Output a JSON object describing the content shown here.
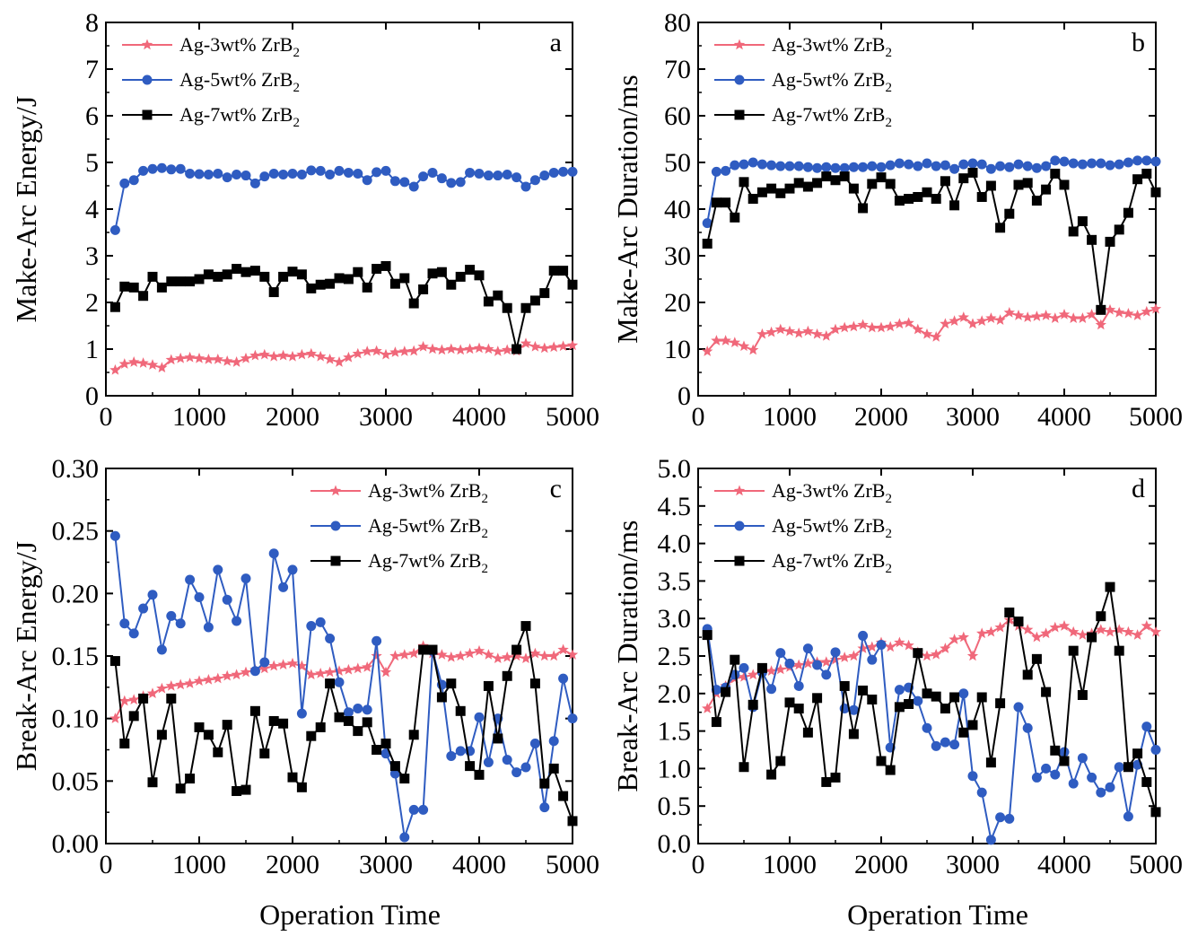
{
  "figure": {
    "x_axis_shared_label": "Operation Time"
  },
  "series_styles": [
    {
      "name": "Ag-3wt% ZrB2",
      "name_base": "Ag-3wt% ZrB",
      "name_sub": "2",
      "color": "#f0687a",
      "marker": "star"
    },
    {
      "name": "Ag-5wt% ZrB2",
      "name_base": "Ag-5wt% ZrB",
      "name_sub": "2",
      "color": "#2f5cc1",
      "marker": "circle"
    },
    {
      "name": "Ag-7wt% ZrB2",
      "name_base": "Ag-7wt% ZrB",
      "name_sub": "2",
      "color": "#000000",
      "marker": "square"
    }
  ],
  "chart_data": [
    {
      "panel": "a",
      "type": "line",
      "ylabel": "Make-Arc Energy/J",
      "xlabel": "",
      "xlim": [
        0,
        5000
      ],
      "ylim": [
        0,
        8
      ],
      "xticks": [
        "0",
        "1000",
        "2000",
        "3000",
        "4000",
        "5000"
      ],
      "yticks": [
        "0",
        "1",
        "2",
        "3",
        "4",
        "5",
        "6",
        "7",
        "8"
      ],
      "legend": "top-left",
      "x": [
        100,
        200,
        300,
        400,
        500,
        600,
        700,
        800,
        900,
        1000,
        1100,
        1200,
        1300,
        1400,
        1500,
        1600,
        1700,
        1800,
        1900,
        2000,
        2100,
        2200,
        2300,
        2400,
        2500,
        2600,
        2700,
        2800,
        2900,
        3000,
        3100,
        3200,
        3300,
        3400,
        3500,
        3600,
        3700,
        3800,
        3900,
        4000,
        4100,
        4200,
        4300,
        4400,
        4500,
        4600,
        4700,
        4800,
        4900,
        5000
      ],
      "series": [
        {
          "name": "Ag-3wt% ZrB2",
          "values": [
            0.55,
            0.68,
            0.72,
            0.7,
            0.66,
            0.6,
            0.77,
            0.8,
            0.82,
            0.8,
            0.78,
            0.78,
            0.74,
            0.72,
            0.8,
            0.86,
            0.88,
            0.84,
            0.86,
            0.84,
            0.88,
            0.9,
            0.84,
            0.78,
            0.72,
            0.82,
            0.9,
            0.95,
            0.96,
            0.88,
            0.93,
            0.95,
            0.96,
            1.05,
            1.0,
            0.98,
            1.0,
            0.98,
            1.0,
            1.02,
            1.0,
            0.95,
            0.98,
            0.96,
            1.12,
            1.05,
            1.02,
            1.04,
            1.06,
            1.08
          ]
        },
        {
          "name": "Ag-5wt% ZrB2",
          "values": [
            3.55,
            4.55,
            4.62,
            4.82,
            4.86,
            4.88,
            4.85,
            4.86,
            4.76,
            4.75,
            4.74,
            4.76,
            4.68,
            4.74,
            4.72,
            4.55,
            4.7,
            4.76,
            4.74,
            4.76,
            4.74,
            4.83,
            4.82,
            4.74,
            4.82,
            4.78,
            4.76,
            4.62,
            4.79,
            4.82,
            4.6,
            4.58,
            4.48,
            4.7,
            4.78,
            4.66,
            4.56,
            4.58,
            4.78,
            4.76,
            4.72,
            4.72,
            4.74,
            4.68,
            4.48,
            4.62,
            4.72,
            4.78,
            4.8,
            4.8
          ]
        },
        {
          "name": "Ag-7wt% ZrB2",
          "values": [
            1.9,
            2.34,
            2.32,
            2.14,
            2.55,
            2.32,
            2.45,
            2.45,
            2.45,
            2.5,
            2.6,
            2.55,
            2.6,
            2.72,
            2.65,
            2.68,
            2.55,
            2.22,
            2.55,
            2.66,
            2.6,
            2.3,
            2.38,
            2.4,
            2.52,
            2.5,
            2.65,
            2.32,
            2.72,
            2.78,
            2.4,
            2.52,
            1.98,
            2.28,
            2.62,
            2.65,
            2.38,
            2.55,
            2.7,
            2.58,
            2.02,
            2.15,
            1.88,
            1.0,
            1.88,
            2.04,
            2.2,
            2.68,
            2.68,
            2.38
          ]
        }
      ]
    },
    {
      "panel": "b",
      "type": "line",
      "ylabel": "Make-Arc Duration/ms",
      "xlabel": "",
      "xlim": [
        0,
        5000
      ],
      "ylim": [
        0,
        80
      ],
      "xticks": [
        "0",
        "1000",
        "2000",
        "3000",
        "4000",
        "5000"
      ],
      "yticks": [
        "0",
        "10",
        "20",
        "30",
        "40",
        "50",
        "60",
        "70",
        "80"
      ],
      "legend": "top-left",
      "x": [
        100,
        200,
        300,
        400,
        500,
        600,
        700,
        800,
        900,
        1000,
        1100,
        1200,
        1300,
        1400,
        1500,
        1600,
        1700,
        1800,
        1900,
        2000,
        2100,
        2200,
        2300,
        2400,
        2500,
        2600,
        2700,
        2800,
        2900,
        3000,
        3100,
        3200,
        3300,
        3400,
        3500,
        3600,
        3700,
        3800,
        3900,
        4000,
        4100,
        4200,
        4300,
        4400,
        4500,
        4600,
        4700,
        4800,
        4900,
        5000
      ],
      "series": [
        {
          "name": "Ag-3wt% ZrB2",
          "values": [
            9.5,
            11.8,
            11.8,
            11.4,
            10.6,
            9.8,
            13.2,
            13.6,
            14.2,
            13.8,
            13.4,
            13.8,
            13.2,
            12.8,
            14.2,
            14.6,
            14.8,
            15.2,
            14.6,
            14.6,
            14.8,
            15.4,
            15.6,
            14.2,
            13.2,
            12.6,
            15.4,
            16.0,
            16.8,
            15.4,
            16.0,
            16.6,
            16.2,
            17.8,
            17.2,
            16.8,
            17.0,
            17.2,
            16.6,
            17.4,
            16.6,
            16.6,
            17.4,
            15.2,
            18.4,
            17.8,
            17.6,
            17.2,
            18.0,
            18.6
          ]
        },
        {
          "name": "Ag-5wt% ZrB2",
          "values": [
            37.0,
            48.0,
            48.2,
            49.4,
            49.6,
            50.0,
            49.6,
            49.4,
            49.2,
            49.2,
            49.2,
            49.0,
            48.8,
            49.0,
            48.8,
            48.8,
            49.0,
            49.0,
            49.2,
            49.0,
            49.4,
            49.8,
            49.6,
            49.2,
            49.8,
            49.2,
            49.4,
            48.6,
            49.6,
            49.8,
            49.6,
            48.6,
            49.2,
            49.0,
            49.6,
            49.2,
            48.8,
            49.2,
            50.4,
            50.2,
            49.8,
            49.6,
            49.8,
            49.8,
            49.4,
            49.6,
            50.0,
            50.4,
            50.4,
            50.2
          ]
        },
        {
          "name": "Ag-7wt% ZrB2",
          "values": [
            32.6,
            41.4,
            41.4,
            38.2,
            45.8,
            42.2,
            43.6,
            44.4,
            43.4,
            44.4,
            45.6,
            44.8,
            45.6,
            47.0,
            46.2,
            47.0,
            44.4,
            40.2,
            45.4,
            46.8,
            45.4,
            41.8,
            42.2,
            42.6,
            43.6,
            42.2,
            46.0,
            40.8,
            46.6,
            47.8,
            42.6,
            45.0,
            36.0,
            39.0,
            45.2,
            45.6,
            41.8,
            44.2,
            47.6,
            45.2,
            35.2,
            37.4,
            33.4,
            18.4,
            33.0,
            35.6,
            39.2,
            46.4,
            47.6,
            43.6
          ]
        }
      ]
    },
    {
      "panel": "c",
      "type": "line",
      "ylabel": "Break-Arc Energy/J",
      "xlabel": "Operation Time",
      "xlim": [
        0,
        5000
      ],
      "ylim": [
        0,
        0.3
      ],
      "xticks": [
        "0",
        "1000",
        "2000",
        "3000",
        "4000",
        "5000"
      ],
      "yticks": [
        "0.00",
        "0.05",
        "0.10",
        "0.15",
        "0.20",
        "0.25",
        "0.30"
      ],
      "legend": "top-right",
      "x": [
        100,
        200,
        300,
        400,
        500,
        600,
        700,
        800,
        900,
        1000,
        1100,
        1200,
        1300,
        1400,
        1500,
        1600,
        1700,
        1800,
        1900,
        2000,
        2100,
        2200,
        2300,
        2400,
        2500,
        2600,
        2700,
        2800,
        2900,
        3000,
        3100,
        3200,
        3300,
        3400,
        3500,
        3600,
        3700,
        3800,
        3900,
        4000,
        4100,
        4200,
        4300,
        4400,
        4500,
        4600,
        4700,
        4800,
        4900,
        5000
      ],
      "series": [
        {
          "name": "Ag-3wt% ZrB2",
          "values": [
            0.1,
            0.114,
            0.115,
            0.118,
            0.12,
            0.124,
            0.126,
            0.127,
            0.128,
            0.13,
            0.131,
            0.132,
            0.134,
            0.135,
            0.137,
            0.139,
            0.14,
            0.142,
            0.143,
            0.144,
            0.142,
            0.135,
            0.136,
            0.137,
            0.138,
            0.139,
            0.14,
            0.141,
            0.15,
            0.137,
            0.15,
            0.151,
            0.152,
            0.158,
            0.152,
            0.151,
            0.149,
            0.15,
            0.152,
            0.154,
            0.151,
            0.148,
            0.149,
            0.15,
            0.148,
            0.152,
            0.15,
            0.15,
            0.155,
            0.151
          ]
        },
        {
          "name": "Ag-5wt% ZrB2",
          "values": [
            0.246,
            0.176,
            0.168,
            0.188,
            0.199,
            0.155,
            0.182,
            0.176,
            0.211,
            0.197,
            0.173,
            0.219,
            0.195,
            0.178,
            0.212,
            0.138,
            0.145,
            0.232,
            0.205,
            0.219,
            0.104,
            0.174,
            0.177,
            0.164,
            0.129,
            0.105,
            0.108,
            0.107,
            0.162,
            0.072,
            0.056,
            0.005,
            0.027,
            0.027,
            0.154,
            0.127,
            0.07,
            0.074,
            0.074,
            0.101,
            0.065,
            0.1,
            0.067,
            0.057,
            0.061,
            0.08,
            0.029,
            0.082,
            0.132,
            0.1
          ]
        },
        {
          "name": "Ag-7wt% ZrB2",
          "values": [
            0.146,
            0.08,
            0.102,
            0.116,
            0.049,
            0.087,
            0.116,
            0.044,
            0.052,
            0.093,
            0.087,
            0.073,
            0.095,
            0.042,
            0.043,
            0.106,
            0.072,
            0.098,
            0.096,
            0.053,
            0.045,
            0.086,
            0.093,
            0.128,
            0.101,
            0.098,
            0.09,
            0.097,
            0.075,
            0.08,
            0.062,
            0.052,
            0.087,
            0.155,
            0.155,
            0.117,
            0.128,
            0.106,
            0.062,
            0.055,
            0.126,
            0.084,
            0.134,
            0.155,
            0.174,
            0.128,
            0.048,
            0.06,
            0.038,
            0.018
          ]
        }
      ]
    },
    {
      "panel": "d",
      "type": "line",
      "ylabel": "Break-Arc Duration/ms",
      "xlabel": "Operation Time",
      "xlim": [
        0,
        5000
      ],
      "ylim": [
        0,
        5.0
      ],
      "xticks": [
        "0",
        "1000",
        "2000",
        "3000",
        "4000",
        "5000"
      ],
      "yticks": [
        "0.0",
        "0.5",
        "1.0",
        "1.5",
        "2.0",
        "2.5",
        "3.0",
        "3.5",
        "4.0",
        "4.5",
        "5.0"
      ],
      "legend": "top-left",
      "x": [
        100,
        200,
        300,
        400,
        500,
        600,
        700,
        800,
        900,
        1000,
        1100,
        1200,
        1300,
        1400,
        1500,
        1600,
        1700,
        1800,
        1900,
        2000,
        2100,
        2200,
        2300,
        2400,
        2500,
        2600,
        2700,
        2800,
        2900,
        3000,
        3100,
        3200,
        3300,
        3400,
        3500,
        3600,
        3700,
        3800,
        3900,
        4000,
        4100,
        4200,
        4300,
        4400,
        4500,
        4600,
        4700,
        4800,
        4900,
        5000
      ],
      "series": [
        {
          "name": "Ag-3wt% ZrB2",
          "values": [
            1.8,
            2.0,
            2.1,
            2.2,
            2.22,
            2.25,
            2.3,
            2.3,
            2.32,
            2.35,
            2.38,
            2.4,
            2.42,
            2.42,
            2.45,
            2.48,
            2.5,
            2.6,
            2.62,
            2.68,
            2.62,
            2.68,
            2.64,
            2.55,
            2.5,
            2.52,
            2.6,
            2.72,
            2.75,
            2.5,
            2.8,
            2.82,
            2.88,
            2.98,
            2.9,
            2.85,
            2.75,
            2.8,
            2.88,
            2.9,
            2.82,
            2.78,
            2.8,
            2.85,
            2.82,
            2.85,
            2.82,
            2.78,
            2.9,
            2.82
          ]
        },
        {
          "name": "Ag-5wt% ZrB2",
          "values": [
            2.86,
            2.05,
            2.08,
            2.25,
            2.34,
            1.82,
            2.28,
            2.06,
            2.54,
            2.4,
            2.1,
            2.6,
            2.38,
            2.25,
            2.55,
            1.8,
            1.78,
            2.77,
            2.45,
            2.65,
            1.28,
            2.05,
            2.08,
            1.9,
            1.54,
            1.3,
            1.35,
            1.32,
            2.0,
            0.9,
            0.68,
            0.05,
            0.35,
            0.33,
            1.82,
            1.54,
            0.88,
            1.0,
            0.92,
            1.22,
            0.8,
            1.14,
            0.88,
            0.68,
            0.75,
            1.02,
            0.36,
            1.05,
            1.56,
            1.25
          ]
        },
        {
          "name": "Ag-7wt% ZrB2",
          "values": [
            2.78,
            1.62,
            2.02,
            2.45,
            1.02,
            1.85,
            2.34,
            0.92,
            1.1,
            1.88,
            1.8,
            1.48,
            1.94,
            0.82,
            0.88,
            2.1,
            1.46,
            2.04,
            1.92,
            1.1,
            0.98,
            1.82,
            1.86,
            2.54,
            2.0,
            1.96,
            1.8,
            1.95,
            1.48,
            1.58,
            1.95,
            1.08,
            1.87,
            3.08,
            2.96,
            2.25,
            2.46,
            2.02,
            1.24,
            1.1,
            2.57,
            1.98,
            2.75,
            3.03,
            3.42,
            2.57,
            1.02,
            1.2,
            0.82,
            0.42
          ]
        }
      ]
    }
  ]
}
